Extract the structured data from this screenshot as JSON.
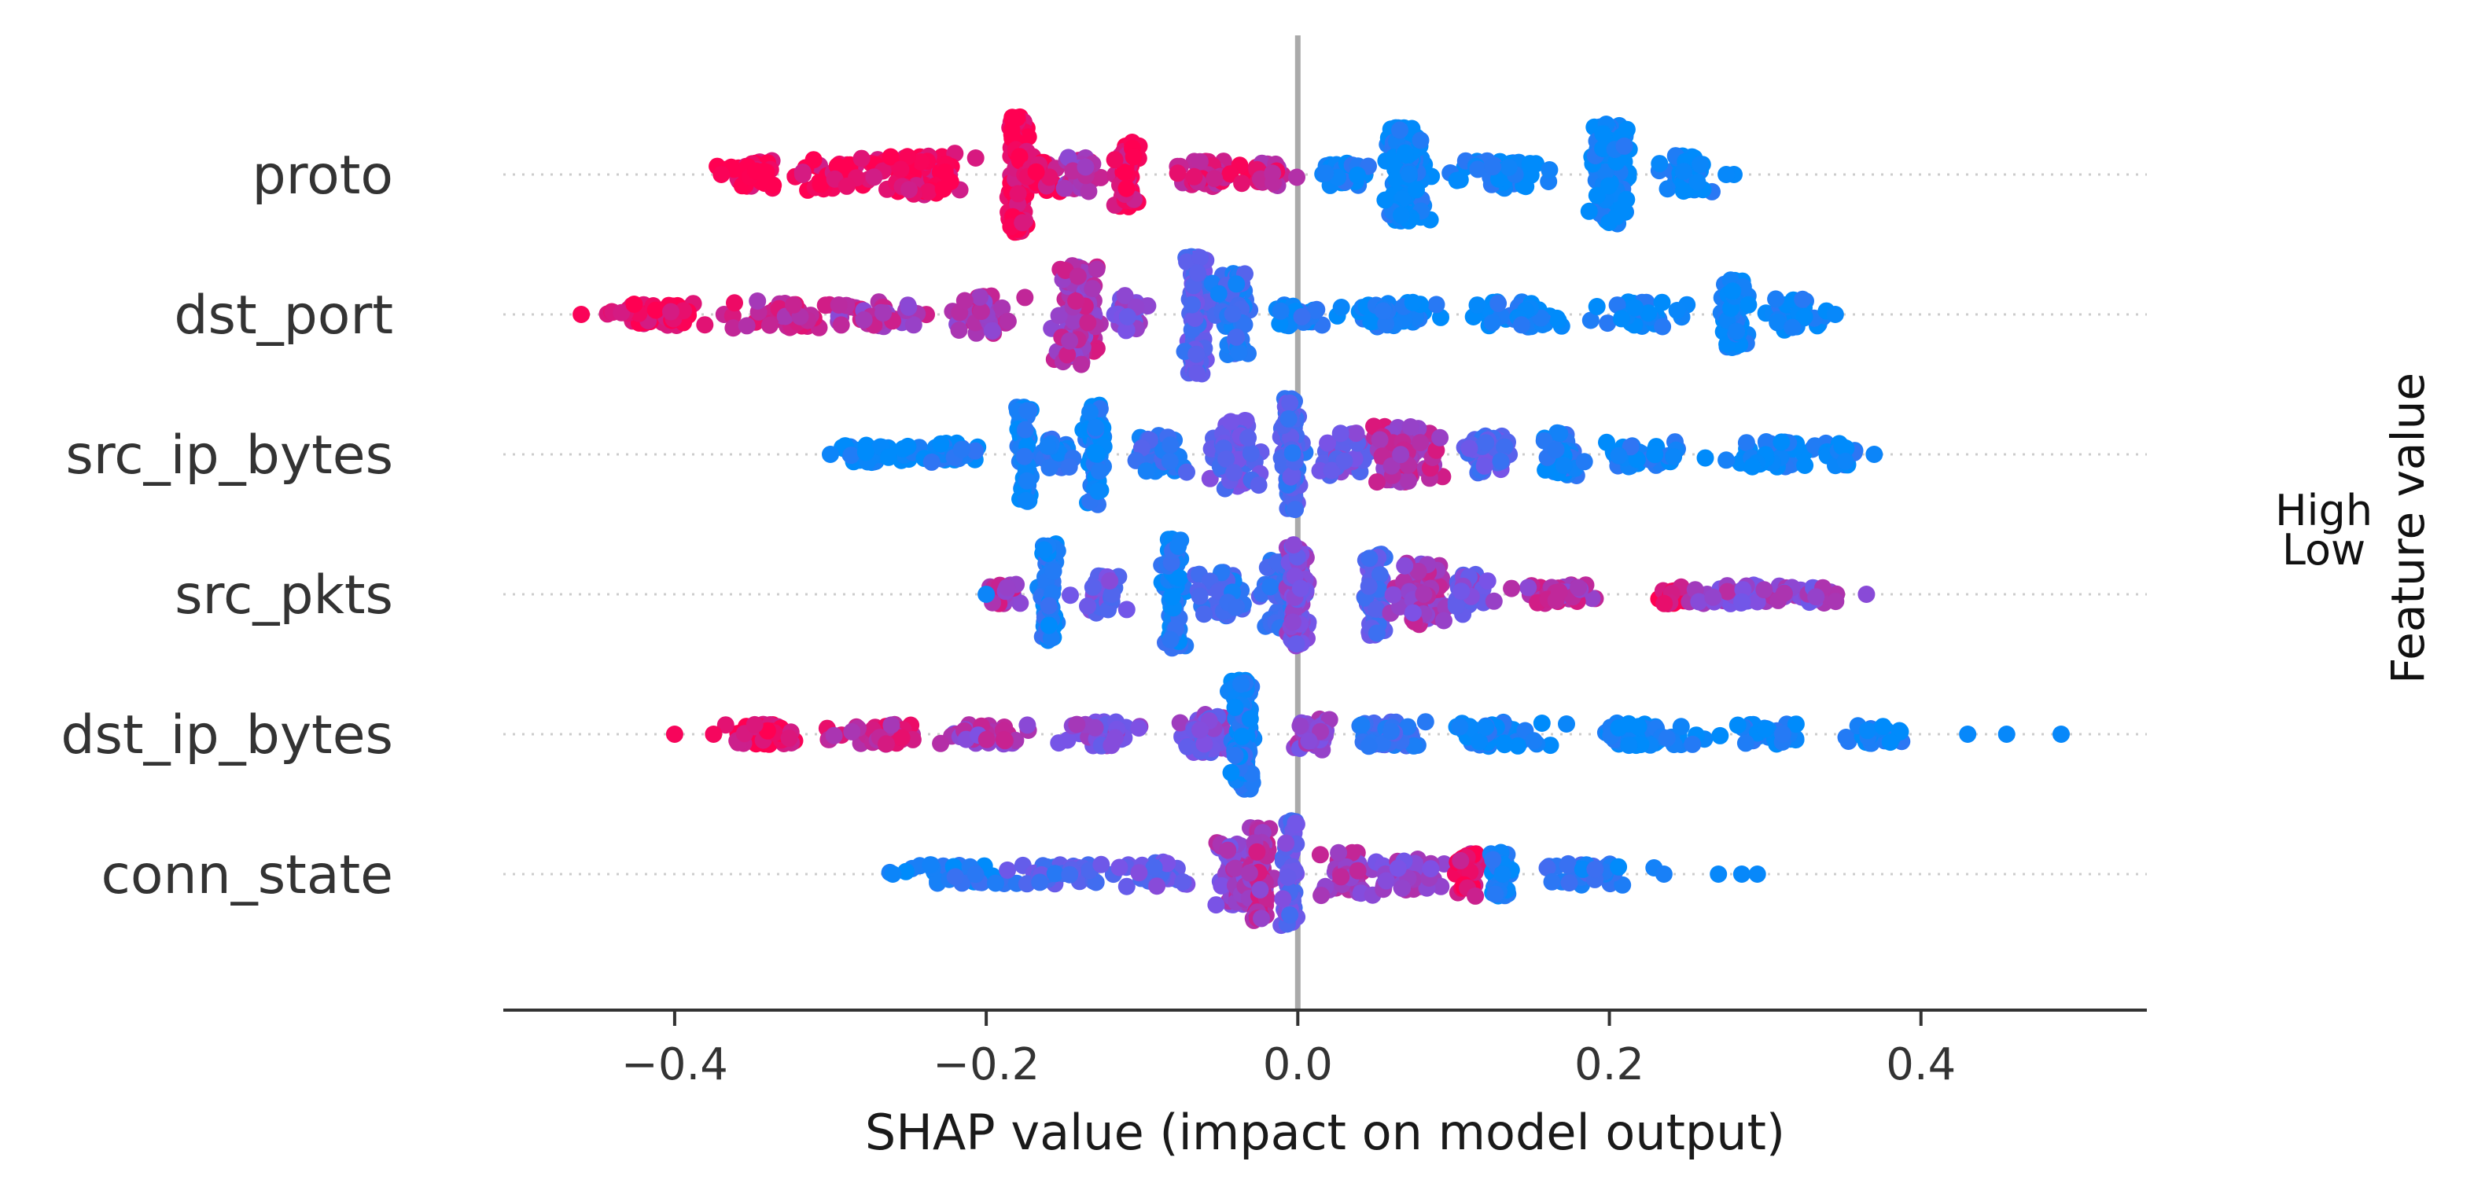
{
  "chart_data": {
    "type": "scatter",
    "subtype": "shap-beeswarm",
    "xlabel": "SHAP value (impact on model output)",
    "x_ticks": [
      -0.4,
      -0.2,
      0.0,
      0.2,
      0.4
    ],
    "x_tick_labels": [
      "−0.4",
      "−0.2",
      "0.0",
      "0.2",
      "0.4"
    ],
    "xlim": [
      -0.51,
      0.545
    ],
    "grid": false,
    "zero_line": true,
    "legend": {
      "title": "Feature value",
      "high_label": "High",
      "low_label": "Low",
      "placement": "right"
    },
    "colors": {
      "low": "#008bfb",
      "high": "#ff0052",
      "zero_line": "#aaaaaa",
      "row_guide": "#cccccc",
      "axis": "#333333"
    },
    "features": [
      {
        "name": "proto",
        "clusters": [
          {
            "x": -0.35,
            "spread": 0.025,
            "height": 0.22,
            "n": 40,
            "v": 0.97
          },
          {
            "x": -0.29,
            "spread": 0.03,
            "height": 0.25,
            "n": 45,
            "v": 0.96
          },
          {
            "x": -0.24,
            "spread": 0.025,
            "height": 0.35,
            "n": 60,
            "v": 0.95
          },
          {
            "x": -0.18,
            "spread": 0.006,
            "height": 0.95,
            "n": 120,
            "v": 0.97
          },
          {
            "x": -0.165,
            "spread": 0.01,
            "height": 0.3,
            "n": 30,
            "v": 0.9
          },
          {
            "x": -0.14,
            "spread": 0.012,
            "height": 0.28,
            "n": 35,
            "v": 0.7
          },
          {
            "x": -0.11,
            "spread": 0.006,
            "height": 0.55,
            "n": 60,
            "v": 0.92
          },
          {
            "x": -0.06,
            "spread": 0.025,
            "height": 0.22,
            "n": 45,
            "v": 0.85
          },
          {
            "x": -0.02,
            "spread": 0.015,
            "height": 0.18,
            "n": 25,
            "v": 0.8
          },
          {
            "x": 0.03,
            "spread": 0.02,
            "height": 0.18,
            "n": 30,
            "v": 0.05
          },
          {
            "x": 0.07,
            "spread": 0.012,
            "height": 0.75,
            "n": 110,
            "v": 0.03
          },
          {
            "x": 0.13,
            "spread": 0.03,
            "height": 0.22,
            "n": 50,
            "v": 0.04
          },
          {
            "x": 0.2,
            "spread": 0.012,
            "height": 0.8,
            "n": 120,
            "v": 0.02
          },
          {
            "x": 0.25,
            "spread": 0.015,
            "height": 0.3,
            "n": 45,
            "v": 0.03
          }
        ],
        "outliers": [
          {
            "x": -0.37,
            "v": 0.98
          },
          {
            "x": 0.28,
            "v": 0.02
          },
          {
            "x": 0.275,
            "v": 0.03
          }
        ]
      },
      {
        "name": "dst_port",
        "clusters": [
          {
            "x": -0.41,
            "spread": 0.035,
            "height": 0.18,
            "n": 60,
            "v": 0.97
          },
          {
            "x": -0.33,
            "spread": 0.03,
            "height": 0.22,
            "n": 45,
            "v": 0.8
          },
          {
            "x": -0.27,
            "spread": 0.03,
            "height": 0.2,
            "n": 40,
            "v": 0.7
          },
          {
            "x": -0.2,
            "spread": 0.02,
            "height": 0.3,
            "n": 45,
            "v": 0.65
          },
          {
            "x": -0.14,
            "spread": 0.012,
            "height": 0.8,
            "n": 110,
            "v": 0.7
          },
          {
            "x": -0.11,
            "spread": 0.01,
            "height": 0.3,
            "n": 30,
            "v": 0.5
          },
          {
            "x": -0.065,
            "spread": 0.006,
            "height": 0.95,
            "n": 110,
            "v": 0.35
          },
          {
            "x": -0.04,
            "spread": 0.01,
            "height": 0.65,
            "n": 70,
            "v": 0.2
          },
          {
            "x": 0.0,
            "spread": 0.02,
            "height": 0.18,
            "n": 30,
            "v": 0.1
          },
          {
            "x": 0.06,
            "spread": 0.03,
            "height": 0.2,
            "n": 45,
            "v": 0.05
          },
          {
            "x": 0.14,
            "spread": 0.03,
            "height": 0.2,
            "n": 45,
            "v": 0.04
          },
          {
            "x": 0.22,
            "spread": 0.025,
            "height": 0.2,
            "n": 40,
            "v": 0.03
          },
          {
            "x": 0.28,
            "spread": 0.008,
            "height": 0.55,
            "n": 70,
            "v": 0.02
          },
          {
            "x": 0.32,
            "spread": 0.02,
            "height": 0.25,
            "n": 40,
            "v": 0.03
          }
        ],
        "outliers": [
          {
            "x": -0.46,
            "v": 0.98
          },
          {
            "x": 0.345,
            "v": 0.03
          }
        ]
      },
      {
        "name": "src_ip_bytes",
        "clusters": [
          {
            "x": -0.27,
            "spread": 0.025,
            "height": 0.15,
            "n": 40,
            "v": 0.05
          },
          {
            "x": -0.22,
            "spread": 0.02,
            "height": 0.2,
            "n": 35,
            "v": 0.06
          },
          {
            "x": -0.175,
            "spread": 0.005,
            "height": 0.75,
            "n": 70,
            "v": 0.04
          },
          {
            "x": -0.155,
            "spread": 0.012,
            "height": 0.25,
            "n": 25,
            "v": 0.1
          },
          {
            "x": -0.13,
            "spread": 0.005,
            "height": 0.8,
            "n": 80,
            "v": 0.05
          },
          {
            "x": -0.09,
            "spread": 0.02,
            "height": 0.3,
            "n": 45,
            "v": 0.2
          },
          {
            "x": -0.04,
            "spread": 0.012,
            "height": 0.55,
            "n": 70,
            "v": 0.4
          },
          {
            "x": -0.005,
            "spread": 0.006,
            "height": 0.9,
            "n": 110,
            "v": 0.3
          },
          {
            "x": 0.03,
            "spread": 0.015,
            "height": 0.35,
            "n": 40,
            "v": 0.45
          },
          {
            "x": 0.07,
            "spread": 0.018,
            "height": 0.45,
            "n": 85,
            "v": 0.72
          },
          {
            "x": 0.12,
            "spread": 0.015,
            "height": 0.3,
            "n": 45,
            "v": 0.35
          },
          {
            "x": 0.17,
            "spread": 0.01,
            "height": 0.35,
            "n": 40,
            "v": 0.1
          },
          {
            "x": 0.22,
            "spread": 0.03,
            "height": 0.2,
            "n": 40,
            "v": 0.05
          },
          {
            "x": 0.3,
            "spread": 0.03,
            "height": 0.2,
            "n": 40,
            "v": 0.04
          },
          {
            "x": 0.35,
            "spread": 0.012,
            "height": 0.18,
            "n": 20,
            "v": 0.05
          }
        ],
        "outliers": [
          {
            "x": -0.3,
            "v": 0.05
          },
          {
            "x": 0.37,
            "v": 0.05
          }
        ]
      },
      {
        "name": "src_pkts",
        "clusters": [
          {
            "x": -0.19,
            "spread": 0.01,
            "height": 0.18,
            "n": 20,
            "v": 0.7
          },
          {
            "x": -0.16,
            "spread": 0.005,
            "height": 0.8,
            "n": 70,
            "v": 0.1
          },
          {
            "x": -0.125,
            "spread": 0.015,
            "height": 0.3,
            "n": 35,
            "v": 0.4
          },
          {
            "x": -0.08,
            "spread": 0.006,
            "height": 0.9,
            "n": 90,
            "v": 0.1
          },
          {
            "x": -0.05,
            "spread": 0.015,
            "height": 0.35,
            "n": 40,
            "v": 0.2
          },
          {
            "x": -0.01,
            "spread": 0.012,
            "height": 0.55,
            "n": 70,
            "v": 0.25
          },
          {
            "x": 0.0,
            "spread": 0.006,
            "height": 0.85,
            "n": 90,
            "v": 0.55
          },
          {
            "x": 0.05,
            "spread": 0.006,
            "height": 0.65,
            "n": 70,
            "v": 0.35
          },
          {
            "x": 0.08,
            "spread": 0.015,
            "height": 0.5,
            "n": 70,
            "v": 0.65
          },
          {
            "x": 0.11,
            "spread": 0.01,
            "height": 0.35,
            "n": 35,
            "v": 0.5
          },
          {
            "x": 0.17,
            "spread": 0.03,
            "height": 0.15,
            "n": 45,
            "v": 0.7
          },
          {
            "x": 0.24,
            "spread": 0.01,
            "height": 0.15,
            "n": 20,
            "v": 0.95
          },
          {
            "x": 0.28,
            "spread": 0.03,
            "height": 0.15,
            "n": 40,
            "v": 0.6
          },
          {
            "x": 0.33,
            "spread": 0.02,
            "height": 0.15,
            "n": 30,
            "v": 0.55
          }
        ],
        "outliers": [
          {
            "x": -0.2,
            "v": 0.05
          },
          {
            "x": 0.365,
            "v": 0.55
          }
        ]
      },
      {
        "name": "dst_ip_bytes",
        "clusters": [
          {
            "x": -0.34,
            "spread": 0.025,
            "height": 0.16,
            "n": 40,
            "v": 0.95
          },
          {
            "x": -0.27,
            "spread": 0.03,
            "height": 0.16,
            "n": 45,
            "v": 0.8
          },
          {
            "x": -0.2,
            "spread": 0.025,
            "height": 0.16,
            "n": 40,
            "v": 0.65
          },
          {
            "x": -0.13,
            "spread": 0.02,
            "height": 0.2,
            "n": 40,
            "v": 0.55
          },
          {
            "x": -0.06,
            "spread": 0.012,
            "height": 0.35,
            "n": 50,
            "v": 0.5
          },
          {
            "x": -0.035,
            "spread": 0.006,
            "height": 0.9,
            "n": 110,
            "v": 0.1
          },
          {
            "x": 0.01,
            "spread": 0.015,
            "height": 0.25,
            "n": 40,
            "v": 0.6
          },
          {
            "x": 0.06,
            "spread": 0.02,
            "height": 0.2,
            "n": 45,
            "v": 0.25
          },
          {
            "x": 0.13,
            "spread": 0.03,
            "height": 0.2,
            "n": 55,
            "v": 0.05
          },
          {
            "x": 0.22,
            "spread": 0.03,
            "height": 0.18,
            "n": 45,
            "v": 0.04
          },
          {
            "x": 0.3,
            "spread": 0.025,
            "height": 0.16,
            "n": 35,
            "v": 0.04
          },
          {
            "x": 0.37,
            "spread": 0.025,
            "height": 0.15,
            "n": 30,
            "v": 0.04
          }
        ],
        "outliers": [
          {
            "x": -0.4,
            "v": 0.97
          },
          {
            "x": -0.375,
            "v": 0.96
          },
          {
            "x": 0.43,
            "v": 0.03
          },
          {
            "x": 0.455,
            "v": 0.03
          },
          {
            "x": 0.49,
            "v": 0.03
          }
        ]
      },
      {
        "name": "conn_state",
        "clusters": [
          {
            "x": -0.22,
            "spread": 0.03,
            "height": 0.15,
            "n": 40,
            "v": 0.1
          },
          {
            "x": -0.15,
            "spread": 0.03,
            "height": 0.16,
            "n": 40,
            "v": 0.3
          },
          {
            "x": -0.09,
            "spread": 0.02,
            "height": 0.2,
            "n": 40,
            "v": 0.4
          },
          {
            "x": -0.04,
            "spread": 0.012,
            "height": 0.5,
            "n": 70,
            "v": 0.6
          },
          {
            "x": -0.025,
            "spread": 0.006,
            "height": 0.75,
            "n": 90,
            "v": 0.7
          },
          {
            "x": -0.005,
            "spread": 0.005,
            "height": 0.85,
            "n": 80,
            "v": 0.4
          },
          {
            "x": 0.03,
            "spread": 0.015,
            "height": 0.35,
            "n": 50,
            "v": 0.65
          },
          {
            "x": 0.07,
            "spread": 0.02,
            "height": 0.25,
            "n": 45,
            "v": 0.6
          },
          {
            "x": 0.11,
            "spread": 0.008,
            "height": 0.35,
            "n": 35,
            "v": 0.9
          },
          {
            "x": 0.13,
            "spread": 0.008,
            "height": 0.35,
            "n": 35,
            "v": 0.05
          },
          {
            "x": 0.19,
            "spread": 0.03,
            "height": 0.18,
            "n": 45,
            "v": 0.15
          }
        ],
        "outliers": [
          {
            "x": -0.26,
            "v": 0.05
          },
          {
            "x": 0.235,
            "v": 0.1
          },
          {
            "x": 0.27,
            "v": 0.03
          },
          {
            "x": 0.285,
            "v": 0.03
          },
          {
            "x": 0.295,
            "v": 0.03
          }
        ]
      }
    ]
  }
}
